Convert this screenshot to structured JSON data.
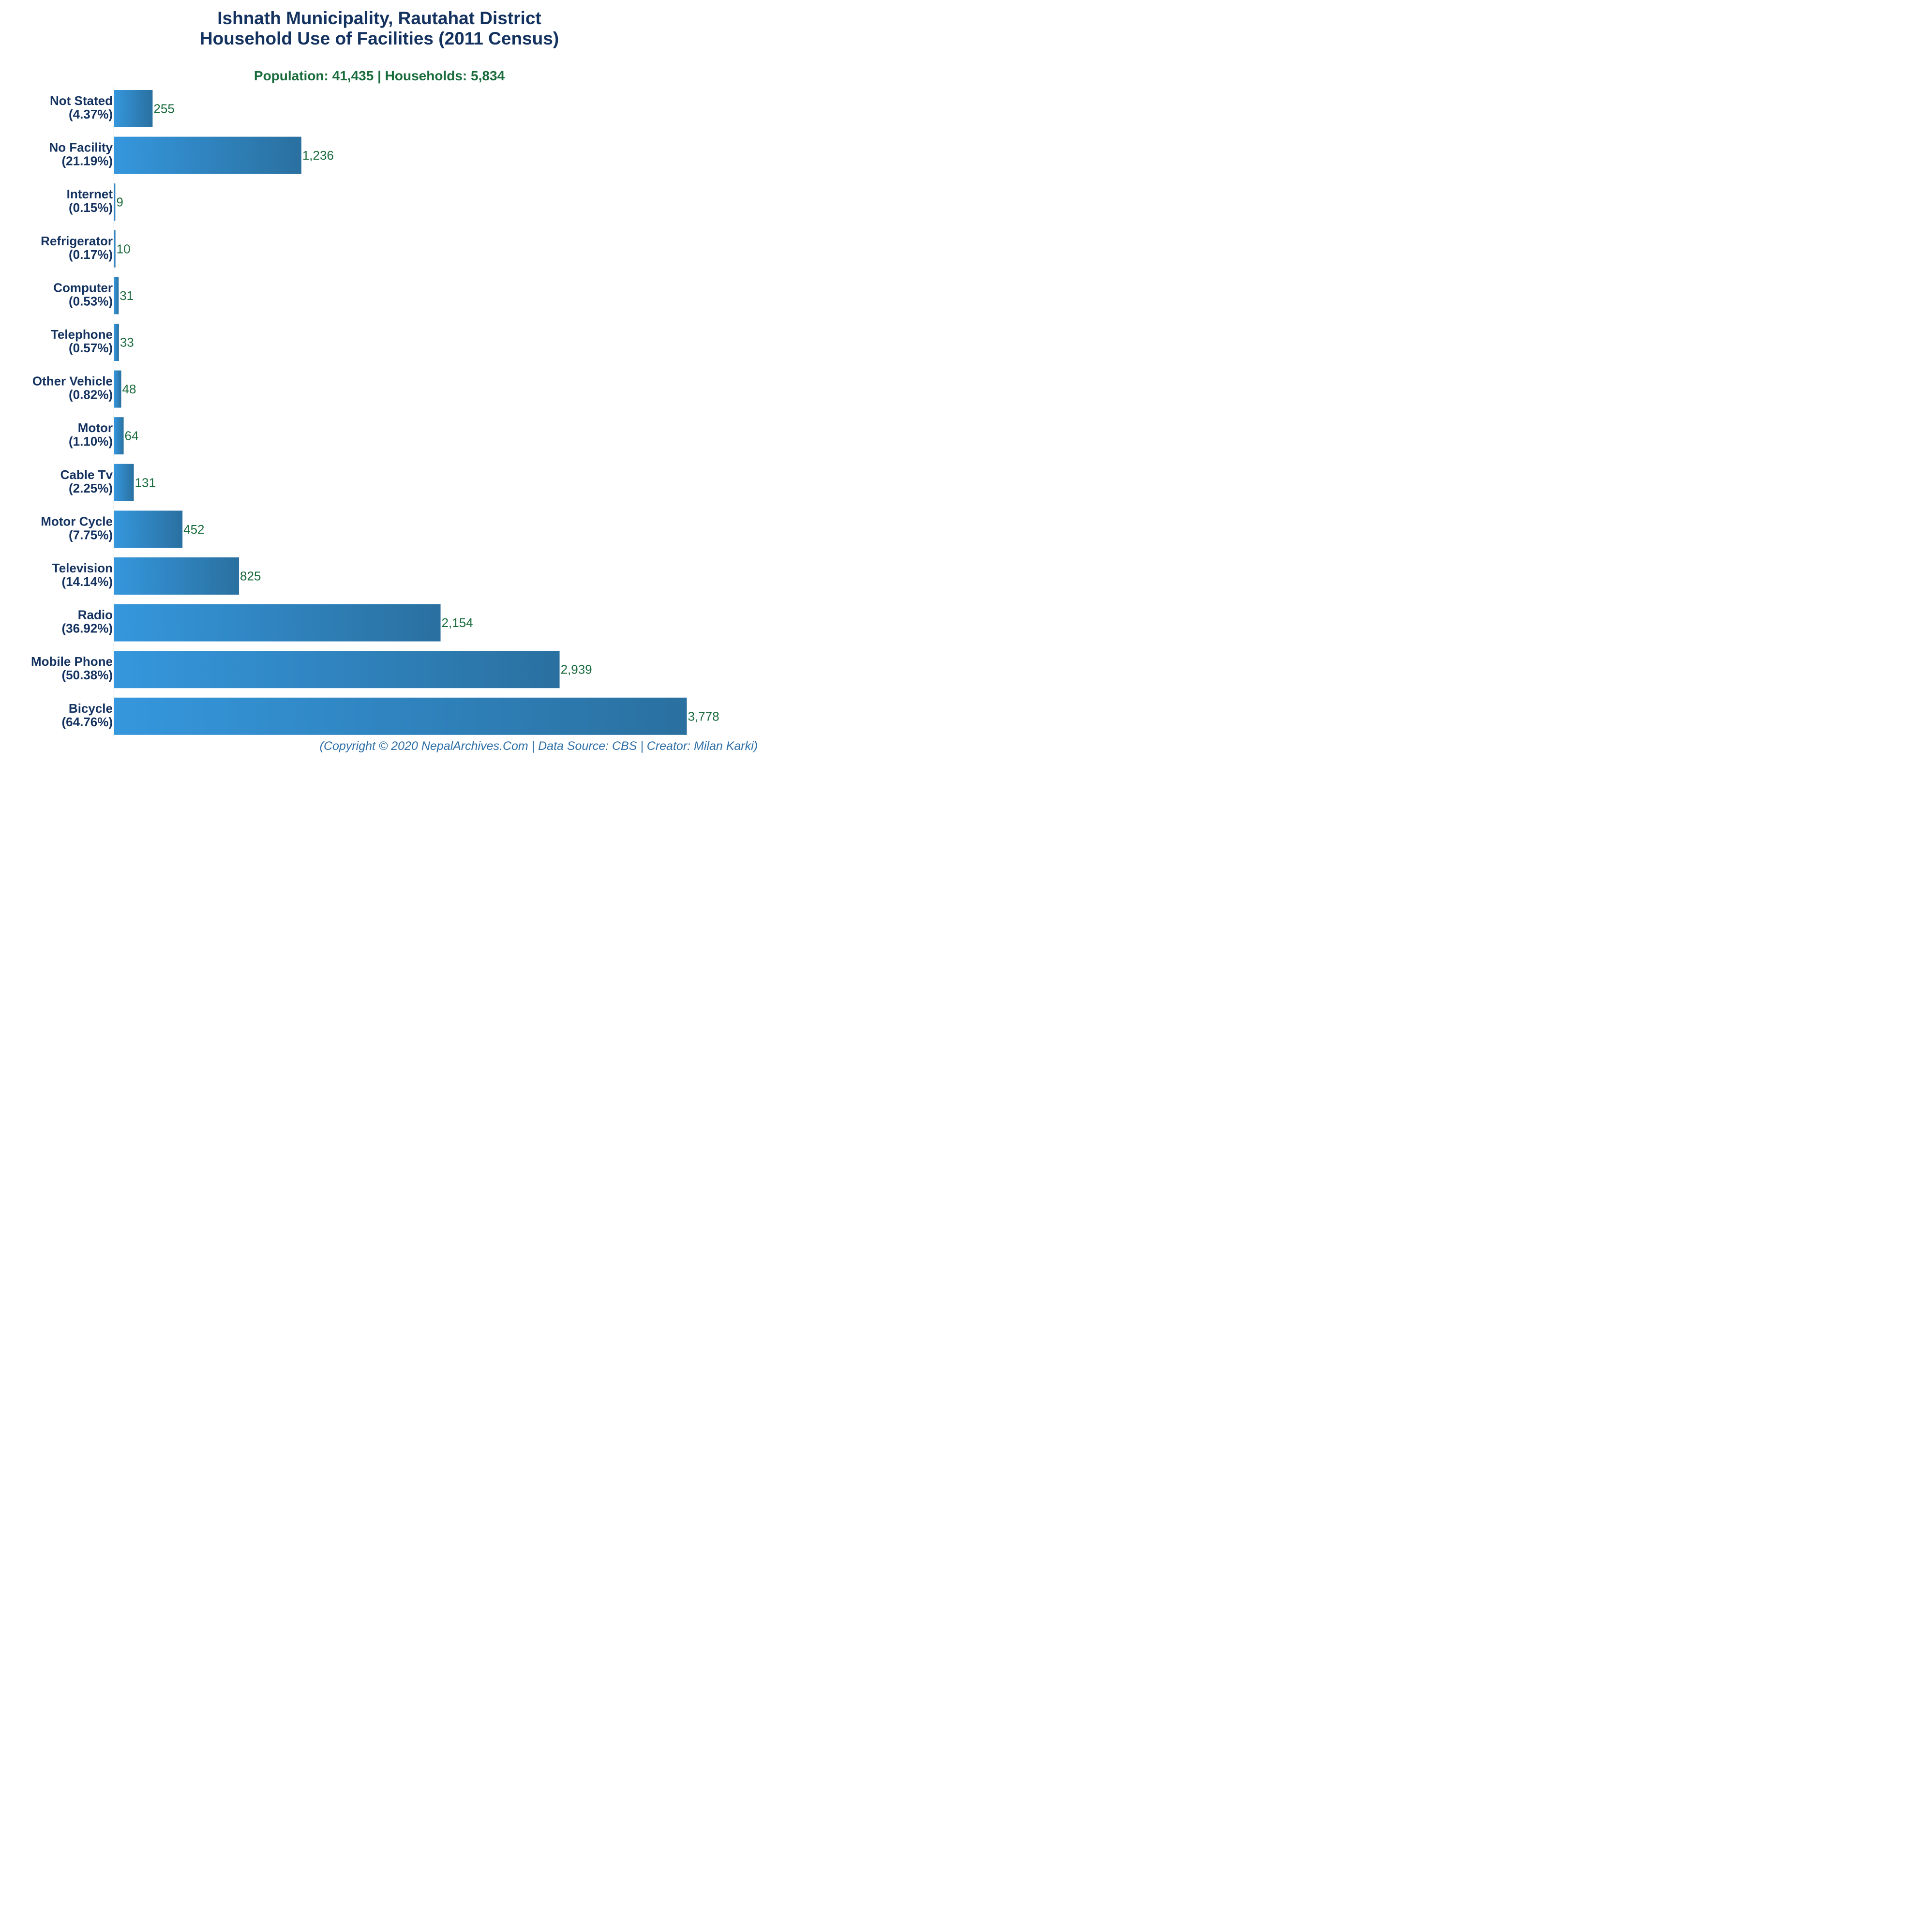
{
  "chart_data": {
    "type": "bar",
    "orientation": "horizontal",
    "title_line1": "Ishnath Municipality, Rautahat District",
    "title_line2": "Household Use of Facilities (2011 Census)",
    "subtitle": "Population: 41,435 | Households: 5,834",
    "categories": [
      "Not Stated",
      "No Facility",
      "Internet",
      "Refrigerator",
      "Computer",
      "Telephone",
      "Other Vehicle",
      "Motor",
      "Cable Tv",
      "Motor Cycle",
      "Television",
      "Radio",
      "Mobile Phone",
      "Bicycle"
    ],
    "percents": [
      "(4.37%)",
      "(21.19%)",
      "(0.15%)",
      "(0.17%)",
      "(0.53%)",
      "(0.57%)",
      "(0.82%)",
      "(1.10%)",
      "(2.25%)",
      "(7.75%)",
      "(14.14%)",
      "(36.92%)",
      "(50.38%)",
      "(64.76%)"
    ],
    "values": [
      255,
      1236,
      9,
      10,
      31,
      33,
      48,
      64,
      131,
      452,
      825,
      2154,
      2939,
      3778
    ],
    "value_labels": [
      "255",
      "1,236",
      "9",
      "10",
      "31",
      "33",
      "48",
      "64",
      "131",
      "452",
      "825",
      "2,154",
      "2,939",
      "3,778"
    ],
    "xlim": [
      0,
      3778
    ],
    "grid": false,
    "legend": "none",
    "colors": {
      "bar_light": "#3597dd",
      "bar_dark": "#2a70a0",
      "title": "#14325f",
      "subtitle": "#1a6b3c",
      "value_label": "#1a6b3c",
      "footer": "#2e6fa7",
      "axis": "#999999"
    }
  },
  "footer": "(Copyright © 2020 NepalArchives.Com | Data Source: CBS | Creator: Milan Karki)"
}
